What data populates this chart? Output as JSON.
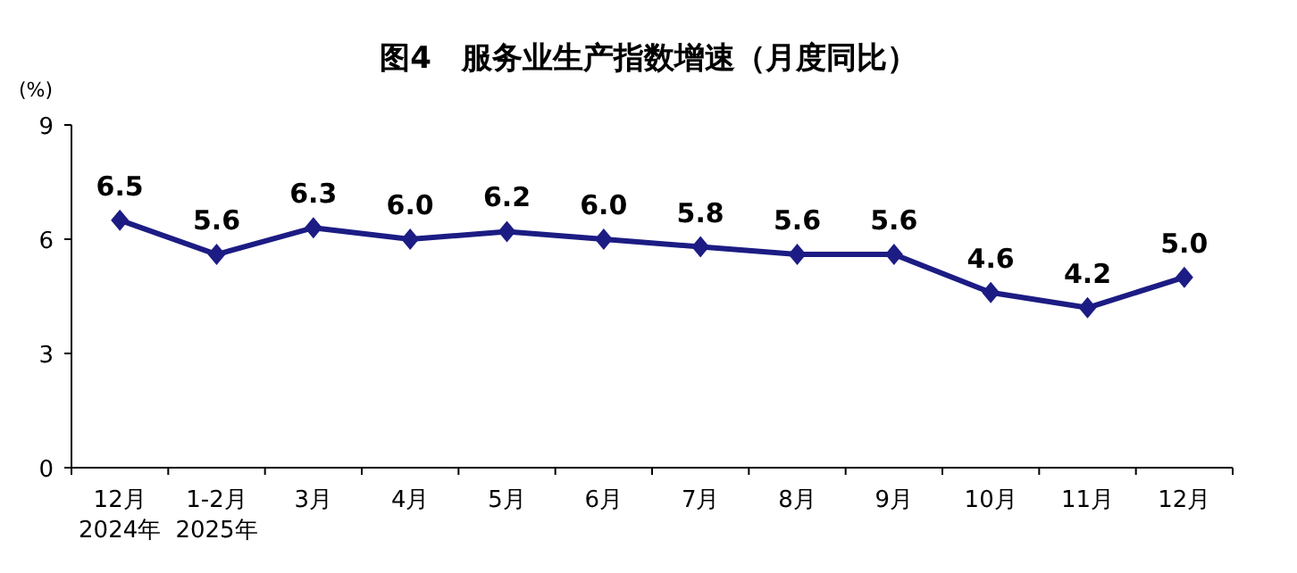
{
  "chart_data": {
    "type": "line",
    "title": "图4　服务业生产指数增速（月度同比）",
    "ylabel": "(%)",
    "categories": [
      "12月\n2024年",
      "1-2月\n2025年",
      "3月",
      "4月",
      "5月",
      "6月",
      "7月",
      "8月",
      "9月",
      "10月",
      "11月",
      "12月"
    ],
    "series": [
      {
        "color": "#1c1c84",
        "values": [
          6.5,
          5.6,
          6.3,
          6.0,
          6.2,
          6.0,
          5.8,
          5.6,
          5.6,
          4.6,
          4.2,
          5.0
        ],
        "value_labels": [
          "6.5",
          "5.6",
          "6.3",
          "6.0",
          "6.2",
          "6.0",
          "5.8",
          "5.6",
          "5.6",
          "4.6",
          "4.2",
          "5.0"
        ]
      }
    ],
    "ylim": [
      0,
      9
    ],
    "yticks": [
      0,
      3,
      6,
      9
    ],
    "grid": false,
    "marker": "diamond",
    "line_style": "solid"
  }
}
